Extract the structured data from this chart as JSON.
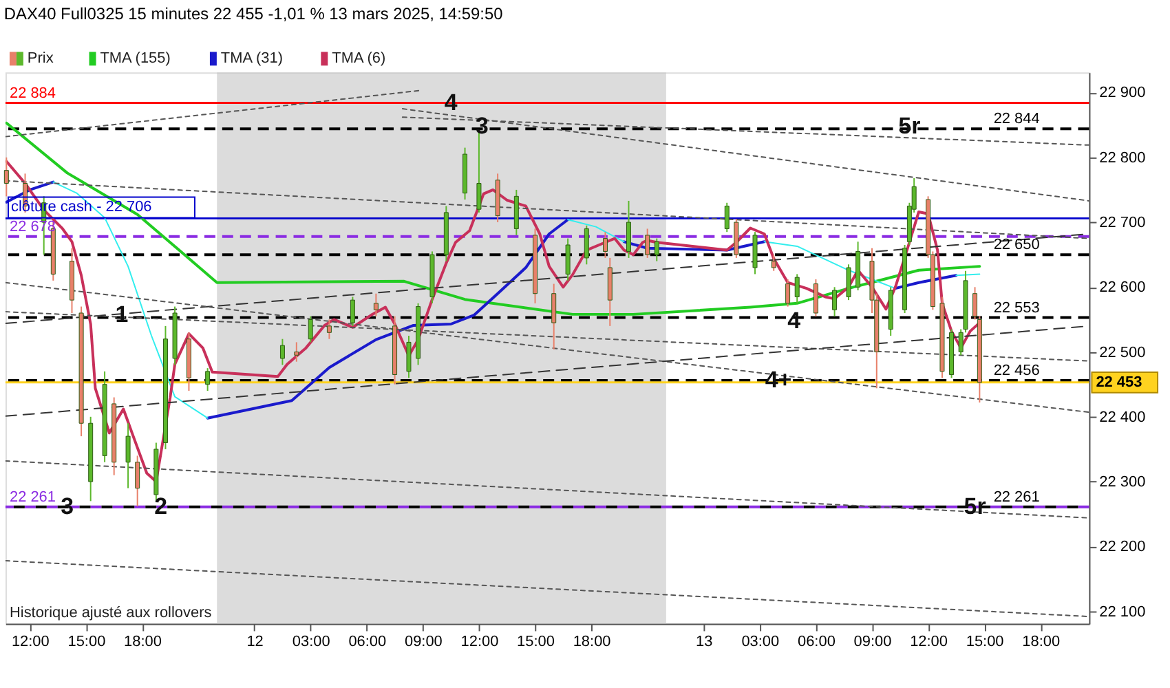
{
  "chart_data": {
    "type": "candlestick",
    "title": "DAX40 Full0325 15 minutes 22 455 -1,01 % 13 mars 2025, 14:59:50",
    "xlim": [
      "2025-03-11T10:42",
      "2025-03-13T20:36"
    ],
    "ylim": [
      22081,
      22931
    ],
    "xticks": [
      {
        "value": "2025-03-11T12:00",
        "label": "12:00"
      },
      {
        "value": "2025-03-11T15:00",
        "label": "15:00"
      },
      {
        "value": "2025-03-11T18:00",
        "label": "18:00"
      },
      {
        "value": "2025-03-12T00:00",
        "label": "12"
      },
      {
        "value": "2025-03-12T03:00",
        "label": "03:00"
      },
      {
        "value": "2025-03-12T06:00",
        "label": "06:00"
      },
      {
        "value": "2025-03-12T09:00",
        "label": "09:00"
      },
      {
        "value": "2025-03-12T12:00",
        "label": "12:00"
      },
      {
        "value": "2025-03-12T15:00",
        "label": "15:00"
      },
      {
        "value": "2025-03-12T18:00",
        "label": "18:00"
      },
      {
        "value": "2025-03-13T00:00",
        "label": "13"
      },
      {
        "value": "2025-03-13T03:00",
        "label": "03:00"
      },
      {
        "value": "2025-03-13T06:00",
        "label": "06:00"
      },
      {
        "value": "2025-03-13T09:00",
        "label": "09:00"
      },
      {
        "value": "2025-03-13T12:00",
        "label": "12:00"
      },
      {
        "value": "2025-03-13T15:00",
        "label": "15:00"
      },
      {
        "value": "2025-03-13T18:00",
        "label": "18:00"
      }
    ],
    "yticks": [
      {
        "value": 22100,
        "label": "22 100"
      },
      {
        "value": 22200,
        "label": "22 200"
      },
      {
        "value": 22300,
        "label": "22 300"
      },
      {
        "value": 22400,
        "label": "22 400"
      },
      {
        "value": 22500,
        "label": "22 500"
      },
      {
        "value": 22600,
        "label": "22 600"
      },
      {
        "value": 22700,
        "label": "22 700"
      },
      {
        "value": 22800,
        "label": "22 800"
      },
      {
        "value": 22900,
        "label": "22 900"
      }
    ],
    "grid": false,
    "legend": "top left",
    "series": [
      {
        "name": "Prix",
        "x": [
          "2025-03-11T10:45",
          "2025-03-11T11:45",
          "2025-03-11T12:45",
          "2025-03-11T13:15",
          "2025-03-11T14:15",
          "2025-03-11T14:45",
          "2025-03-11T15:15",
          "2025-03-11T16:00",
          "2025-03-11T16:30",
          "2025-03-11T17:15",
          "2025-03-11T17:45",
          "2025-03-11T18:45",
          "2025-03-11T19:15",
          "2025-03-11T19:45",
          "2025-03-11T20:30",
          "2025-03-11T21:30",
          "2025-03-12T01:30",
          "2025-03-12T02:15",
          "2025-03-12T03:00",
          "2025-03-12T04:00",
          "2025-03-12T05:15",
          "2025-03-12T06:30",
          "2025-03-12T07:30",
          "2025-03-12T08:15",
          "2025-03-12T08:45",
          "2025-03-12T09:30",
          "2025-03-12T10:15",
          "2025-03-12T11:15",
          "2025-03-12T12:00",
          "2025-03-12T13:00",
          "2025-03-12T14:00",
          "2025-03-12T15:00",
          "2025-03-12T16:00",
          "2025-03-12T16:45",
          "2025-03-12T17:45",
          "2025-03-12T18:45",
          "2025-03-12T19:00",
          "2025-03-12T20:00",
          "2025-03-12T21:00",
          "2025-03-12T21:30",
          "2025-03-13T01:15",
          "2025-03-13T01:45",
          "2025-03-13T02:45",
          "2025-03-13T03:45",
          "2025-03-13T04:30",
          "2025-03-13T05:00",
          "2025-03-13T06:00",
          "2025-03-13T07:00",
          "2025-03-13T07:45",
          "2025-03-13T08:15",
          "2025-03-13T09:00",
          "2025-03-13T09:15",
          "2025-03-13T10:00",
          "2025-03-13T10:45",
          "2025-03-13T11:00",
          "2025-03-13T11:15",
          "2025-03-13T12:00",
          "2025-03-13T12:15",
          "2025-03-13T12:45",
          "2025-03-13T13:15",
          "2025-03-13T13:45",
          "2025-03-13T14:00",
          "2025-03-13T14:30",
          "2025-03-13T14:45"
        ],
        "ohlc": [
          [
            22780,
            22800,
            22740,
            22760
          ],
          [
            22760,
            22775,
            22715,
            22725
          ],
          [
            22700,
            22740,
            22650,
            22730
          ],
          [
            22690,
            22700,
            22610,
            22620
          ],
          [
            22640,
            22660,
            22560,
            22580
          ],
          [
            22560,
            22570,
            22370,
            22390
          ],
          [
            22300,
            22400,
            22270,
            22390
          ],
          [
            22340,
            22470,
            22330,
            22450
          ],
          [
            22420,
            22430,
            22310,
            22330
          ],
          [
            22330,
            22390,
            22290,
            22370
          ],
          [
            22330,
            22340,
            22262,
            22290
          ],
          [
            22280,
            22360,
            22270,
            22350
          ],
          [
            22360,
            22540,
            22350,
            22520
          ],
          [
            22490,
            22570,
            22480,
            22560
          ],
          [
            22520,
            22530,
            22440,
            22460
          ],
          [
            22450,
            22475,
            22440,
            22470
          ],
          [
            22490,
            22520,
            22480,
            22510
          ],
          [
            22500,
            22515,
            22485,
            22495
          ],
          [
            22520,
            22555,
            22515,
            22550
          ],
          [
            22540,
            22550,
            22520,
            22530
          ],
          [
            22545,
            22585,
            22540,
            22580
          ],
          [
            22575,
            22590,
            22555,
            22565
          ],
          [
            22540,
            22555,
            22450,
            22465
          ],
          [
            22470,
            22525,
            22460,
            22515
          ],
          [
            22490,
            22575,
            22480,
            22570
          ],
          [
            22585,
            22655,
            22575,
            22650
          ],
          [
            22650,
            22725,
            22640,
            22715
          ],
          [
            22745,
            22815,
            22735,
            22805
          ],
          [
            22720,
            22841,
            22715,
            22760
          ],
          [
            22765,
            22775,
            22700,
            22710
          ],
          [
            22690,
            22750,
            22680,
            22740
          ],
          [
            22680,
            22690,
            22575,
            22590
          ],
          [
            22590,
            22605,
            22504,
            22545
          ],
          [
            22620,
            22675,
            22610,
            22665
          ],
          [
            22645,
            22695,
            22635,
            22690
          ],
          [
            22675,
            22685,
            22645,
            22655
          ],
          [
            22630,
            22645,
            22540,
            22580
          ],
          [
            22655,
            22733,
            22645,
            22700
          ],
          [
            22680,
            22690,
            22645,
            22650
          ],
          [
            22650,
            22675,
            22640,
            22670
          ],
          [
            22690,
            22730,
            22685,
            22725
          ],
          [
            22700,
            22705,
            22645,
            22650
          ],
          [
            22630,
            22685,
            22620,
            22680
          ],
          [
            22640,
            22650,
            22625,
            22630
          ],
          [
            22605,
            22612,
            22570,
            22575
          ],
          [
            22585,
            22620,
            22575,
            22615
          ],
          [
            22605,
            22612,
            22555,
            22560
          ],
          [
            22565,
            22600,
            22555,
            22595
          ],
          [
            22585,
            22635,
            22580,
            22630
          ],
          [
            22600,
            22670,
            22595,
            22655
          ],
          [
            22640,
            22660,
            22560,
            22580
          ],
          [
            22580,
            22590,
            22444,
            22500
          ],
          [
            22535,
            22600,
            22525,
            22595
          ],
          [
            22565,
            22665,
            22560,
            22660
          ],
          [
            22670,
            22730,
            22665,
            22725
          ],
          [
            22720,
            22768,
            22715,
            22755
          ],
          [
            22735,
            22740,
            22645,
            22650
          ],
          [
            22650,
            22655,
            22565,
            22570
          ],
          [
            22575,
            22585,
            22460,
            22470
          ],
          [
            22465,
            22535,
            22460,
            22530
          ],
          [
            22500,
            22535,
            22495,
            22530
          ],
          [
            22535,
            22625,
            22530,
            22610
          ],
          [
            22590,
            22600,
            22550,
            22555
          ],
          [
            22550,
            22555,
            22422,
            22453
          ]
        ],
        "colors": [
          "#e8806a",
          "#e8806a",
          "#5cb82c",
          "#e8806a",
          "#e8806a",
          "#e8806a",
          "#5cb82c",
          "#5cb82c",
          "#e8806a",
          "#5cb82c",
          "#e8806a",
          "#5cb82c",
          "#5cb82c",
          "#5cb82c",
          "#e8806a",
          "#5cb82c",
          "#5cb82c",
          "#e8806a",
          "#5cb82c",
          "#e8806a",
          "#5cb82c",
          "#e8806a",
          "#e8806a",
          "#5cb82c",
          "#5cb82c",
          "#5cb82c",
          "#5cb82c",
          "#5cb82c",
          "#5cb82c",
          "#e8806a",
          "#5cb82c",
          "#e8806a",
          "#e8806a",
          "#5cb82c",
          "#5cb82c",
          "#e8806a",
          "#e8806a",
          "#5cb82c",
          "#e8806a",
          "#5cb82c",
          "#5cb82c",
          "#e8806a",
          "#5cb82c",
          "#e8806a",
          "#e8806a",
          "#5cb82c",
          "#e8806a",
          "#5cb82c",
          "#5cb82c",
          "#5cb82c",
          "#e8806a",
          "#e8806a",
          "#5cb82c",
          "#5cb82c",
          "#5cb82c",
          "#5cb82c",
          "#e8806a",
          "#e8806a",
          "#e8806a",
          "#5cb82c",
          "#5cb82c",
          "#5cb82c",
          "#e8806a",
          "#e8806a"
        ]
      },
      {
        "name": "TMA (155)",
        "type": "line",
        "color": "#22cc22",
        "x": [
          "2025-03-11T10:45",
          "2025-03-11T14:00",
          "2025-03-11T17:45",
          "2025-03-11T22:00",
          "2025-03-12T08:00",
          "2025-03-12T11:15",
          "2025-03-12T17:00",
          "2025-03-12T20:15",
          "2025-03-13T02:30",
          "2025-03-13T05:00",
          "2025-03-13T07:45",
          "2025-03-13T11:30",
          "2025-03-13T14:45"
        ],
        "values": [
          22853,
          22776,
          22712,
          22607,
          22609,
          22581,
          22558,
          22558,
          22569,
          22575,
          22598,
          22626,
          22632
        ]
      },
      {
        "name": "TMA (31)",
        "type": "line",
        "color": "#1a1acc",
        "x": [
          "2025-03-11T10:45",
          "2025-03-11T12:00",
          "2025-03-11T13:15",
          "2025-03-11T14:30",
          "2025-03-11T16:00",
          "2025-03-11T17:15",
          "2025-03-11T18:30",
          "2025-03-11T19:45",
          "2025-03-11T21:30",
          "2025-03-12T02:00",
          "2025-03-12T04:00",
          "2025-03-12T06:30",
          "2025-03-12T08:30",
          "2025-03-12T10:30",
          "2025-03-12T11:45",
          "2025-03-12T13:00",
          "2025-03-12T14:30",
          "2025-03-12T15:45",
          "2025-03-12T16:45",
          "2025-03-12T18:15",
          "2025-03-12T19:45",
          "2025-03-12T21:00",
          "2025-03-13T01:15",
          "2025-03-13T03:15",
          "2025-03-13T05:00",
          "2025-03-13T07:45",
          "2025-03-13T10:15",
          "2025-03-13T11:30",
          "2025-03-13T13:30"
        ],
        "values": [
          22731,
          22750,
          22762,
          null,
          null,
          null,
          null,
          null,
          22398,
          22425,
          22476,
          22519,
          22541,
          22543,
          22557,
          22590,
          22630,
          22682,
          22704,
          null,
          22670,
          22660,
          22657,
          22670,
          null,
          null,
          22598,
          22607,
          22618
        ]
      },
      {
        "type": "line",
        "color": "#33eeee",
        "x": [
          "2025-03-11T13:15",
          "2025-03-11T14:30",
          "2025-03-11T16:00",
          "2025-03-11T17:15",
          "2025-03-11T18:30",
          "2025-03-11T19:45",
          "2025-03-11T21:30",
          "2025-03-12T02:00",
          "2025-03-12T04:00",
          "2025-03-12T06:30",
          "2025-03-12T08:30",
          "2025-03-12T10:30",
          "2025-03-12T11:45",
          "2025-03-12T13:00",
          "2025-03-12T14:30",
          "2025-03-12T15:45",
          "2025-03-12T16:45",
          "2025-03-12T18:15",
          "2025-03-12T19:45",
          "2025-03-12T21:00",
          "2025-03-13T01:15",
          "2025-03-13T03:15",
          "2025-03-13T05:00",
          "2025-03-13T07:45",
          "2025-03-13T10:15",
          "2025-03-13T11:30",
          "2025-03-13T13:30",
          "2025-03-13T14:45"
        ],
        "values": [
          22762,
          22745,
          22707,
          22632,
          22525,
          22431,
          22398,
          null,
          null,
          null,
          null,
          null,
          null,
          null,
          null,
          null,
          22704,
          22693,
          22670,
          null,
          null,
          22670,
          22663,
          22626,
          22598,
          null,
          22618,
          22620
        ]
      },
      {
        "name": "TMA (6)",
        "type": "line",
        "color": "#c8305a",
        "x": [
          "2025-03-11T10:45",
          "2025-03-11T11:45",
          "2025-03-11T12:45",
          "2025-03-11T13:45",
          "2025-03-11T14:15",
          "2025-03-11T14:45",
          "2025-03-11T15:15",
          "2025-03-11T15:30",
          "2025-03-11T16:15",
          "2025-03-11T17:00",
          "2025-03-11T17:30",
          "2025-03-11T18:15",
          "2025-03-11T18:45",
          "2025-03-11T19:30",
          "2025-03-11T19:45",
          "2025-03-11T20:30",
          "2025-03-11T21:15",
          "2025-03-11T21:45",
          "2025-03-12T01:15",
          "2025-03-12T01:45",
          "2025-03-12T02:45",
          "2025-03-12T03:45",
          "2025-03-12T04:15",
          "2025-03-12T05:15",
          "2025-03-12T06:15",
          "2025-03-12T07:00",
          "2025-03-12T07:30",
          "2025-03-12T08:15",
          "2025-03-12T08:45",
          "2025-03-12T09:30",
          "2025-03-12T10:15",
          "2025-03-12T10:45",
          "2025-03-12T11:30",
          "2025-03-12T12:15",
          "2025-03-12T12:45",
          "2025-03-12T13:30",
          "2025-03-12T14:30",
          "2025-03-12T15:15",
          "2025-03-12T15:45",
          "2025-03-12T16:30",
          "2025-03-12T17:00",
          "2025-03-12T17:45",
          "2025-03-12T18:45",
          "2025-03-12T19:15",
          "2025-03-12T19:45",
          "2025-03-12T20:15",
          "2025-03-12T20:45",
          "2025-03-12T21:00",
          "2025-03-12T21:30",
          "2025-03-13T01:15",
          "2025-03-13T01:45",
          "2025-03-13T02:30",
          "2025-03-13T03:15",
          "2025-03-13T03:45",
          "2025-03-13T04:30",
          "2025-03-13T05:30",
          "2025-03-13T06:30",
          "2025-03-13T07:00",
          "2025-03-13T07:45",
          "2025-03-13T08:15",
          "2025-03-13T09:00",
          "2025-03-13T09:45",
          "2025-03-13T10:15",
          "2025-03-13T11:00",
          "2025-03-13T11:30",
          "2025-03-13T12:00",
          "2025-03-13T12:30",
          "2025-03-13T12:45",
          "2025-03-13T13:15",
          "2025-03-13T13:45",
          "2025-03-13T14:15",
          "2025-03-13T14:45"
        ],
        "values": [
          22794,
          22760,
          22719,
          22690,
          22670,
          22618,
          22543,
          22444,
          22375,
          22412,
          22372,
          22313,
          22300,
          22430,
          22481,
          22528,
          22506,
          22469,
          22462,
          22481,
          22506,
          22541,
          22550,
          22538,
          22557,
          22569,
          22543,
          22494,
          22519,
          22581,
          22637,
          22669,
          22687,
          22744,
          22750,
          22734,
          22725,
          22682,
          22632,
          22600,
          22619,
          22657,
          22669,
          22675,
          22657,
          22650,
          22669,
          22672,
          22669,
          22657,
          22669,
          22691,
          22682,
          22644,
          22607,
          22598,
          22585,
          22582,
          22600,
          22626,
          22600,
          22566,
          22600,
          22669,
          22716,
          22713,
          22657,
          22575,
          22532,
          22506,
          22532,
          22545
        ]
      },
      {
        "type": "line",
        "color": "#555555",
        "line_style": "dotted",
        "x": [
          "2025-03-11T10:42",
          "2025-03-12T08:48"
        ],
        "values": [
          22832,
          22903
        ]
      },
      {
        "type": "line",
        "color": "#555555",
        "line_style": "dotted",
        "x": [
          "2025-03-12T07:55",
          "2025-03-13T20:36"
        ],
        "values": [
          22875,
          22733
        ]
      },
      {
        "type": "line",
        "color": "#555555",
        "line_style": "dotted",
        "x": [
          "2025-03-12T07:55",
          "2025-03-13T20:36"
        ],
        "values": [
          22862,
          22819
        ]
      },
      {
        "type": "line",
        "color": "#555555",
        "line_style": "dotted",
        "x": [
          "2025-03-11T10:42",
          "2025-03-13T20:36"
        ],
        "values": [
          22764,
          22675
        ]
      },
      {
        "type": "line",
        "color": "#333333",
        "line_style": "dashed",
        "x": [
          "2025-03-11T10:42",
          "2025-03-13T20:36"
        ],
        "values": [
          22544,
          22682
        ]
      },
      {
        "type": "line",
        "color": "#555555",
        "line_style": "dotted",
        "x": [
          "2025-03-11T10:42",
          "2025-03-13T20:36"
        ],
        "values": [
          22607,
          22407
        ]
      },
      {
        "type": "line",
        "color": "#555555",
        "line_style": "dotted",
        "x": [
          "2025-03-11T10:42",
          "2025-03-13T20:36"
        ],
        "values": [
          22562,
          22486
        ]
      },
      {
        "type": "line",
        "color": "#333333",
        "line_style": "dashed",
        "x": [
          "2025-03-11T10:42",
          "2025-03-13T20:36"
        ],
        "values": [
          22401,
          22540
        ]
      },
      {
        "type": "line",
        "color": "#555555",
        "line_style": "dotted",
        "x": [
          "2025-03-11T10:42",
          "2025-03-13T20:36"
        ],
        "values": [
          22332,
          22244
        ]
      },
      {
        "type": "line",
        "color": "#555555",
        "line_style": "dotted",
        "x": [
          "2025-03-11T10:42",
          "2025-03-13T20:36"
        ],
        "values": [
          22178,
          22092
        ]
      }
    ],
    "bands": [
      {
        "axis": "x",
        "from": "2025-03-11T22:00",
        "to": "2025-03-12T22:00",
        "color": "#c4c4c4"
      }
    ],
    "ref_lines": [
      {
        "axis": "y",
        "value": 22884,
        "label": "22 884",
        "color": "#ff0000",
        "line_style": "solid"
      },
      {
        "axis": "y",
        "value": 22844,
        "label": "22 844",
        "color": "#000000",
        "line_style": "dashed"
      },
      {
        "axis": "y",
        "value": 22706,
        "label": "clôture cash -  22 706",
        "color": "#0000cc",
        "line_style": "solid"
      },
      {
        "axis": "y",
        "value": 22678,
        "label": "22 678",
        "color": "#8a2be2",
        "line_style": "dashed"
      },
      {
        "axis": "y",
        "value": 22650,
        "label": "22 650",
        "color": "#000000",
        "line_style": "dashed"
      },
      {
        "axis": "y",
        "value": 22553,
        "label": "22 553",
        "color": "#000000",
        "line_style": "dashed"
      },
      {
        "axis": "y",
        "value": 22456,
        "label": "22 456",
        "color": "#000000",
        "line_style": "dashed"
      },
      {
        "axis": "y",
        "value": 22453,
        "label": "22 453",
        "color": "#ffd21f",
        "line_style": "solid"
      },
      {
        "axis": "y",
        "value": 22261,
        "label": "22 261",
        "color": "#8a2be2",
        "line_style": "dashed"
      },
      {
        "axis": "y",
        "value": 22261,
        "label": "22 261",
        "color": "#000000",
        "line_style": "dashed"
      }
    ],
    "annotations": [
      {
        "text": "4",
        "x": "2025-03-12T10:30",
        "y": 22884
      },
      {
        "text": "3",
        "x": "2025-03-12T12:10",
        "y": 22847
      },
      {
        "text": "5r",
        "x": "2025-03-13T11:00",
        "y": 22847
      },
      {
        "text": "1",
        "x": "2025-03-11T16:55",
        "y": 22557
      },
      {
        "text": "2",
        "x": "2025-03-11T19:00",
        "y": 22261
      },
      {
        "text": "3",
        "x": "2025-03-11T14:00",
        "y": 22261
      },
      {
        "text": "4",
        "x": "2025-03-13T04:50",
        "y": 22547
      },
      {
        "text": "4+",
        "x": "2025-03-13T04:00",
        "y": 22456
      },
      {
        "text": "5r",
        "x": "2025-03-13T14:30",
        "y": 22261
      },
      "Historique ajusté aux rollovers"
    ]
  }
}
